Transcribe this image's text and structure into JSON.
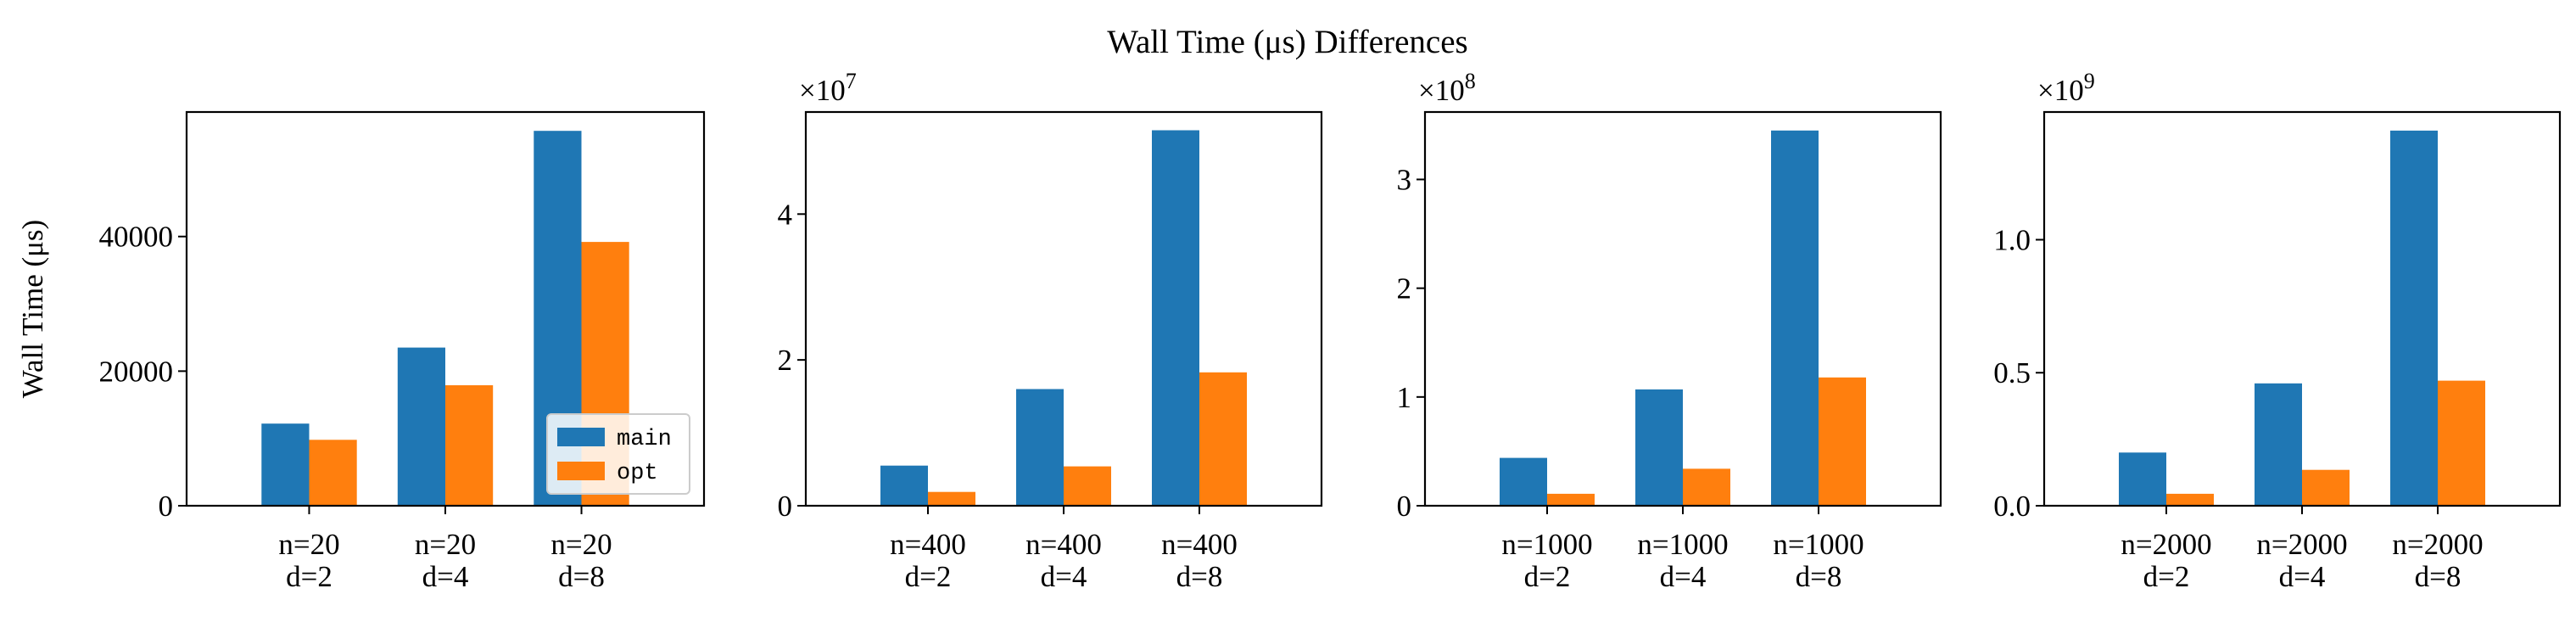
{
  "figure": {
    "suptitle": "Wall Time (μs) Differences"
  },
  "legend": {
    "entries": [
      "main",
      "opt"
    ]
  },
  "colors": {
    "main": "#1f77b4",
    "opt": "#ff7f0e"
  },
  "chart_data": [
    {
      "type": "bar",
      "title": "",
      "xlabel": "",
      "ylabel": "Wall Time (μs)",
      "offset_text": "",
      "categories": [
        "n=20\nd=2",
        "n=20\nd=4",
        "n=20\nd=8"
      ],
      "series": [
        {
          "name": "main",
          "values": [
            12200,
            23500,
            55700
          ]
        },
        {
          "name": "opt",
          "values": [
            9800,
            17900,
            39200
          ]
        }
      ],
      "ylim": [
        0,
        58500
      ],
      "yticks": [
        0,
        20000,
        40000
      ],
      "ytick_labels": [
        "0",
        "20000",
        "40000"
      ],
      "legend": "lower right",
      "grid": false
    },
    {
      "type": "bar",
      "title": "",
      "xlabel": "",
      "ylabel": "",
      "offset_text": "×10",
      "offset_exp": "7",
      "categories": [
        "n=400\nd=2",
        "n=400\nd=4",
        "n=400\nd=8"
      ],
      "series": [
        {
          "name": "main",
          "values": [
            5500000,
            16000000,
            51500000
          ]
        },
        {
          "name": "opt",
          "values": [
            1900000,
            5400000,
            18300000
          ]
        }
      ],
      "ylim": [
        0,
        54000000
      ],
      "yticks": [
        0,
        20000000,
        40000000
      ],
      "ytick_labels": [
        "0",
        "2",
        "4"
      ],
      "grid": false
    },
    {
      "type": "bar",
      "title": "",
      "xlabel": "",
      "ylabel": "",
      "offset_text": "×10",
      "offset_exp": "8",
      "categories": [
        "n=1000\nd=2",
        "n=1000\nd=4",
        "n=1000\nd=8"
      ],
      "series": [
        {
          "name": "main",
          "values": [
            44000000,
            107000000,
            345000000
          ]
        },
        {
          "name": "opt",
          "values": [
            11000000,
            34000000,
            118000000
          ]
        }
      ],
      "ylim": [
        0,
        362000000
      ],
      "yticks": [
        0,
        100000000,
        200000000,
        300000000
      ],
      "ytick_labels": [
        "0",
        "1",
        "2",
        "3"
      ],
      "grid": false
    },
    {
      "type": "bar",
      "title": "",
      "xlabel": "",
      "ylabel": "",
      "offset_text": "×10",
      "offset_exp": "9",
      "categories": [
        "n=2000\nd=2",
        "n=2000\nd=4",
        "n=2000\nd=8"
      ],
      "series": [
        {
          "name": "main",
          "values": [
            200000000,
            460000000,
            1410000000
          ]
        },
        {
          "name": "opt",
          "values": [
            45000000,
            135000000,
            470000000
          ]
        }
      ],
      "ylim": [
        0,
        1480000000
      ],
      "yticks": [
        0,
        500000000,
        1000000000
      ],
      "ytick_labels": [
        "0.0",
        "0.5",
        "1.0"
      ],
      "grid": false
    }
  ]
}
